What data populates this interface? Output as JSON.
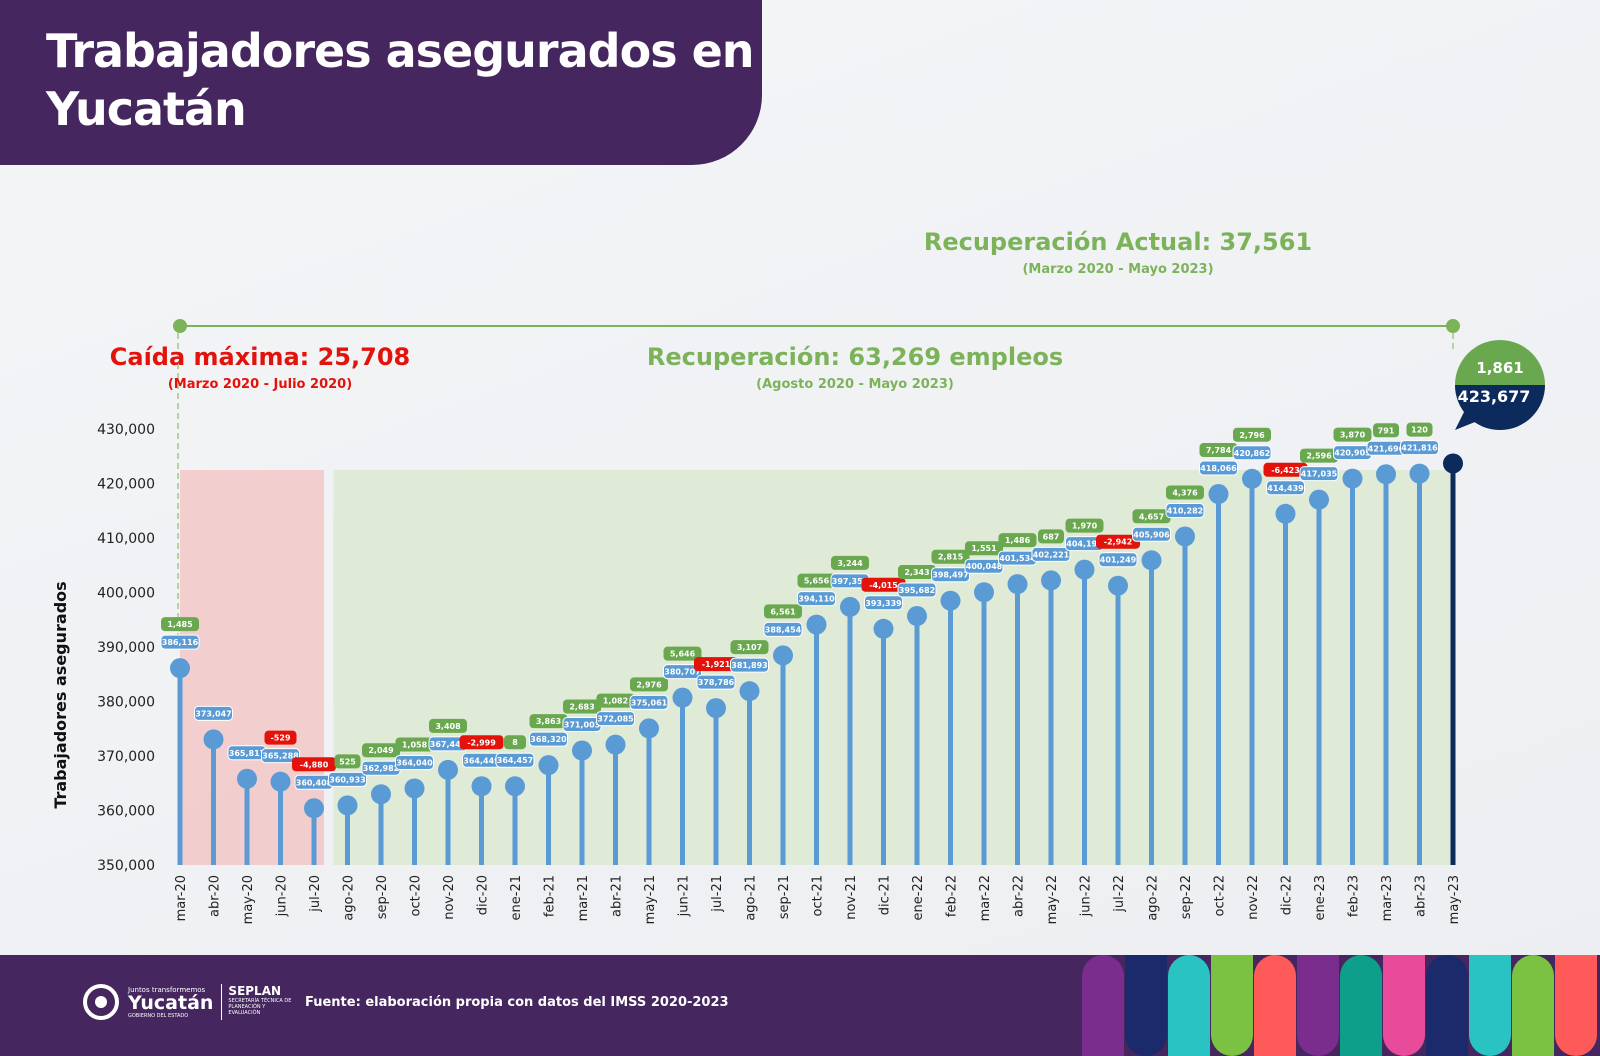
{
  "title": "Trabajadores asegurados en\nYucatán",
  "annotations": {
    "recovery_total": "Recuperación Actual: 37,561",
    "recovery_total_period": "(Marzo 2020 - Mayo 2023)",
    "max_drop": "Caída máxima: 25,708",
    "max_drop_period": "(Marzo 2020 - Julio 2020)",
    "recovery": "Recuperación: 63,269 empleos",
    "recovery_period": "(Agosto 2020 - Mayo 2023)"
  },
  "footer": {
    "logo_tagline": "Juntos transformemos",
    "logo_name": "Yucatán",
    "logo_sub": "GOBIERNO DEL ESTADO",
    "org": "SEPLAN",
    "org_sub": "SECRETARÍA TÉCNICA DE PLANEACIÓN Y EVALUACIÓN",
    "source": "Fuente: elaboración propia con datos del IMSS 2020-2023"
  },
  "colors": {
    "purple": "#45265f",
    "bar": "#5b9bd5",
    "last": "#0d2a5c",
    "positive": "#6aa84f",
    "negative": "#e3120b",
    "drop_zone": "#f2c4c4",
    "recovery_zone": "#dbe8cf"
  },
  "chart_data": {
    "type": "lollipop",
    "ylabel": "Trabajadores asegurados",
    "ylim": [
      350000,
      430000
    ],
    "yticks": [
      "350,000",
      "360,000",
      "370,000",
      "380,000",
      "390,000",
      "400,000",
      "410,000",
      "420,000",
      "430,000"
    ],
    "categories": [
      "mar-20",
      "abr-20",
      "may-20",
      "jun-20",
      "jul-20",
      "ago-20",
      "sep-20",
      "oct-20",
      "nov-20",
      "dic-20",
      "ene-21",
      "feb-21",
      "mar-21",
      "abr-21",
      "may-21",
      "jun-21",
      "jul-21",
      "ago-21",
      "sep-21",
      "oct-21",
      "nov-21",
      "dic-21",
      "ene-22",
      "feb-22",
      "mar-22",
      "abr-22",
      "may-22",
      "jun-22",
      "jul-22",
      "ago-22",
      "sep-22",
      "oct-22",
      "nov-22",
      "dic-22",
      "ene-23",
      "feb-23",
      "mar-23",
      "abr-23",
      "may-23"
    ],
    "values": [
      386116,
      373047,
      365817,
      365288,
      360408,
      360933,
      362982,
      364040,
      367448,
      364449,
      364457,
      368320,
      371003,
      372085,
      375061,
      380707,
      378786,
      381893,
      388454,
      394110,
      397354,
      393339,
      395682,
      398497,
      400048,
      401534,
      402221,
      404191,
      401249,
      405906,
      410282,
      418066,
      420862,
      414439,
      417035,
      420905,
      421696,
      421816,
      423677
    ],
    "value_labels": [
      "386,116",
      "373,047",
      "365,817",
      "365,288",
      "360,408",
      "360,933",
      "362,982",
      "364,040",
      "367,448",
      "364,449",
      "364,457",
      "368,320",
      "371,003",
      "372,085",
      "375,061",
      "380,707",
      "378,786",
      "381,893",
      "388,454",
      "394,110",
      "397,354",
      "393,339",
      "395,682",
      "398,497",
      "400,048",
      "401,534",
      "402,221",
      "404,191",
      "401,249",
      "405,906",
      "410,282",
      "418,066",
      "420,862",
      "414,439",
      "417,035",
      "420,905",
      "421,696",
      "421,816",
      "423,677"
    ],
    "changes": [
      "1,485",
      "",
      "",
      "-529",
      "-4,880",
      "525",
      "2,049",
      "1,058",
      "3,408",
      "-2,999",
      "8",
      "3,863",
      "2,683",
      "1,082",
      "2,976",
      "5,646",
      "-1,921",
      "3,107",
      "6,561",
      "5,656",
      "3,244",
      "-4,015",
      "2,343",
      "2,815",
      "1,551",
      "1,486",
      "687",
      "1,970",
      "-2,942",
      "4,657",
      "4,376",
      "7,784",
      "2,796",
      "-6,423",
      "2,596",
      "3,870",
      "791",
      "120",
      "1,861"
    ],
    "shaded_ranges": [
      {
        "from": "mar-20",
        "to": "jul-20",
        "meaning": "drop"
      },
      {
        "from": "ago-20",
        "to": "may-23",
        "meaning": "recovery"
      }
    ]
  }
}
